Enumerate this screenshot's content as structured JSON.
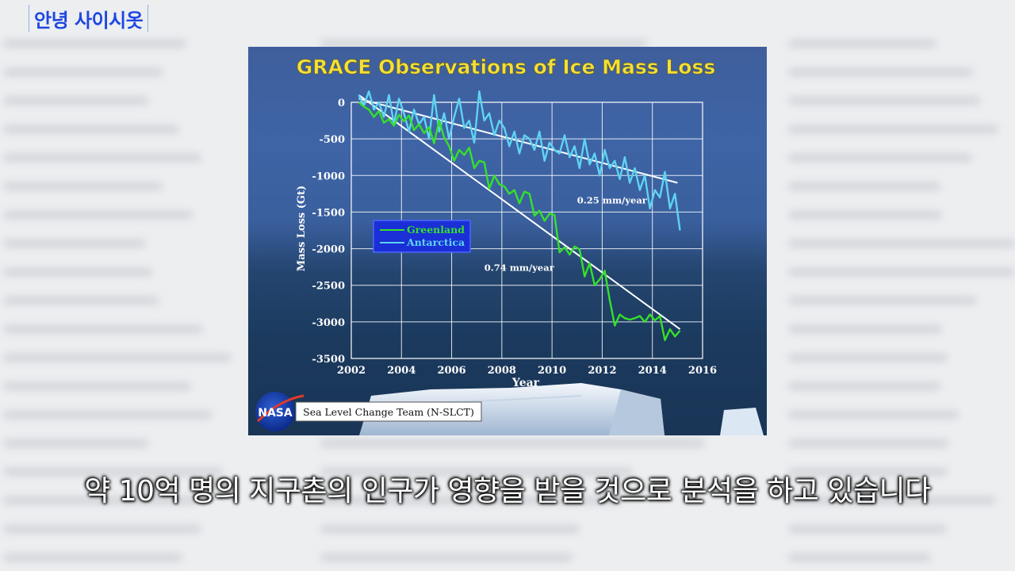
{
  "channel": {
    "name": "안녕 사이시옷"
  },
  "subtitle": {
    "text": "약 10억 명의 지구촌의 인구가 영향을 받을 것으로 분석을 하고 있습니다"
  },
  "colors": {
    "title": "#f2e03a",
    "greenland": "#35e02a",
    "antarctica": "#5fd3f2",
    "trend": "#ffffff",
    "grid": "#ffffff",
    "channel": "#1e47e0"
  },
  "footer": {
    "logo_text": "NASA",
    "team": "Sea Level Change Team (N-SLCT)"
  },
  "chart_data": {
    "type": "line",
    "title": "GRACE Observations of Ice Mass Loss",
    "xlabel": "Year",
    "ylabel": "Mass Loss (Gt)",
    "xlim": [
      2002,
      2016
    ],
    "ylim": [
      -3500,
      0
    ],
    "x_ticks": [
      2002,
      2004,
      2006,
      2008,
      2010,
      2012,
      2014,
      2016
    ],
    "y_ticks": [
      0,
      -500,
      -1000,
      -1500,
      -2000,
      -2500,
      -3000,
      -3500
    ],
    "grid": true,
    "legend_position": "middle-left",
    "series": [
      {
        "name": "Greenland",
        "color_key": "greenland",
        "x": [
          2002.3,
          2002.5,
          2002.7,
          2002.9,
          2003.1,
          2003.3,
          2003.5,
          2003.7,
          2003.9,
          2004.1,
          2004.3,
          2004.5,
          2004.7,
          2004.9,
          2005.1,
          2005.3,
          2005.5,
          2005.7,
          2005.9,
          2006.1,
          2006.3,
          2006.5,
          2006.7,
          2006.9,
          2007.1,
          2007.3,
          2007.5,
          2007.7,
          2007.9,
          2008.1,
          2008.3,
          2008.5,
          2008.7,
          2008.9,
          2009.1,
          2009.3,
          2009.5,
          2009.7,
          2009.9,
          2010.1,
          2010.3,
          2010.5,
          2010.7,
          2010.9,
          2011.1,
          2011.3,
          2011.5,
          2011.7,
          2011.9,
          2012.1,
          2012.3,
          2012.5,
          2012.7,
          2012.9,
          2013.1,
          2013.3,
          2013.5,
          2013.7,
          2013.9,
          2014.1,
          2014.3,
          2014.5,
          2014.7,
          2014.9,
          2015.1
        ],
        "values": [
          0,
          -60,
          -100,
          -200,
          -120,
          -280,
          -230,
          -320,
          -170,
          -260,
          -180,
          -380,
          -300,
          -420,
          -340,
          -560,
          -250,
          -480,
          -600,
          -800,
          -650,
          -720,
          -620,
          -900,
          -800,
          -820,
          -1180,
          -1000,
          -1120,
          -1150,
          -1250,
          -1200,
          -1380,
          -1220,
          -1250,
          -1550,
          -1480,
          -1620,
          -1520,
          -1540,
          -2050,
          -1980,
          -2080,
          -1970,
          -2010,
          -2380,
          -2200,
          -2500,
          -2420,
          -2300,
          -2700,
          -3050,
          -2900,
          -2950,
          -2970,
          -2950,
          -2920,
          -3000,
          -2900,
          -2980,
          -2920,
          -3250,
          -3100,
          -3200,
          -3120
        ]
      },
      {
        "name": "Antarctica",
        "color_key": "antarctica",
        "x": [
          2002.3,
          2002.5,
          2002.7,
          2002.9,
          2003.1,
          2003.3,
          2003.5,
          2003.7,
          2003.9,
          2004.1,
          2004.3,
          2004.5,
          2004.7,
          2004.9,
          2005.1,
          2005.3,
          2005.5,
          2005.7,
          2005.9,
          2006.1,
          2006.3,
          2006.5,
          2006.7,
          2006.9,
          2007.1,
          2007.3,
          2007.5,
          2007.7,
          2007.9,
          2008.1,
          2008.3,
          2008.5,
          2008.7,
          2008.9,
          2009.1,
          2009.3,
          2009.5,
          2009.7,
          2009.9,
          2010.1,
          2010.3,
          2010.5,
          2010.7,
          2010.9,
          2011.1,
          2011.3,
          2011.5,
          2011.7,
          2011.9,
          2012.1,
          2012.3,
          2012.5,
          2012.7,
          2012.9,
          2013.1,
          2013.3,
          2013.5,
          2013.7,
          2013.9,
          2014.1,
          2014.3,
          2014.5,
          2014.7,
          2014.9,
          2015.1
        ],
        "values": [
          100,
          -50,
          150,
          -100,
          0,
          -200,
          100,
          -300,
          50,
          -150,
          -400,
          -100,
          -300,
          -200,
          -500,
          100,
          -400,
          -150,
          -500,
          -200,
          50,
          -350,
          -250,
          -550,
          150,
          -250,
          -150,
          -450,
          -250,
          -350,
          -600,
          -400,
          -700,
          -450,
          -500,
          -650,
          -400,
          -800,
          -550,
          -650,
          -700,
          -450,
          -750,
          -600,
          -900,
          -500,
          -850,
          -700,
          -1000,
          -650,
          -900,
          -800,
          -1050,
          -750,
          -1100,
          -900,
          -1200,
          -1000,
          -1450,
          -1200,
          -1300,
          -950,
          -1450,
          -1250,
          -1750
        ]
      }
    ],
    "trend_lines": [
      {
        "label": "0.74 mm/year",
        "from": [
          2002.3,
          100
        ],
        "to": [
          2015.1,
          -3100
        ]
      },
      {
        "label": "0.25 mm/year",
        "from": [
          2002.3,
          50
        ],
        "to": [
          2015.0,
          -1100
        ]
      }
    ]
  }
}
